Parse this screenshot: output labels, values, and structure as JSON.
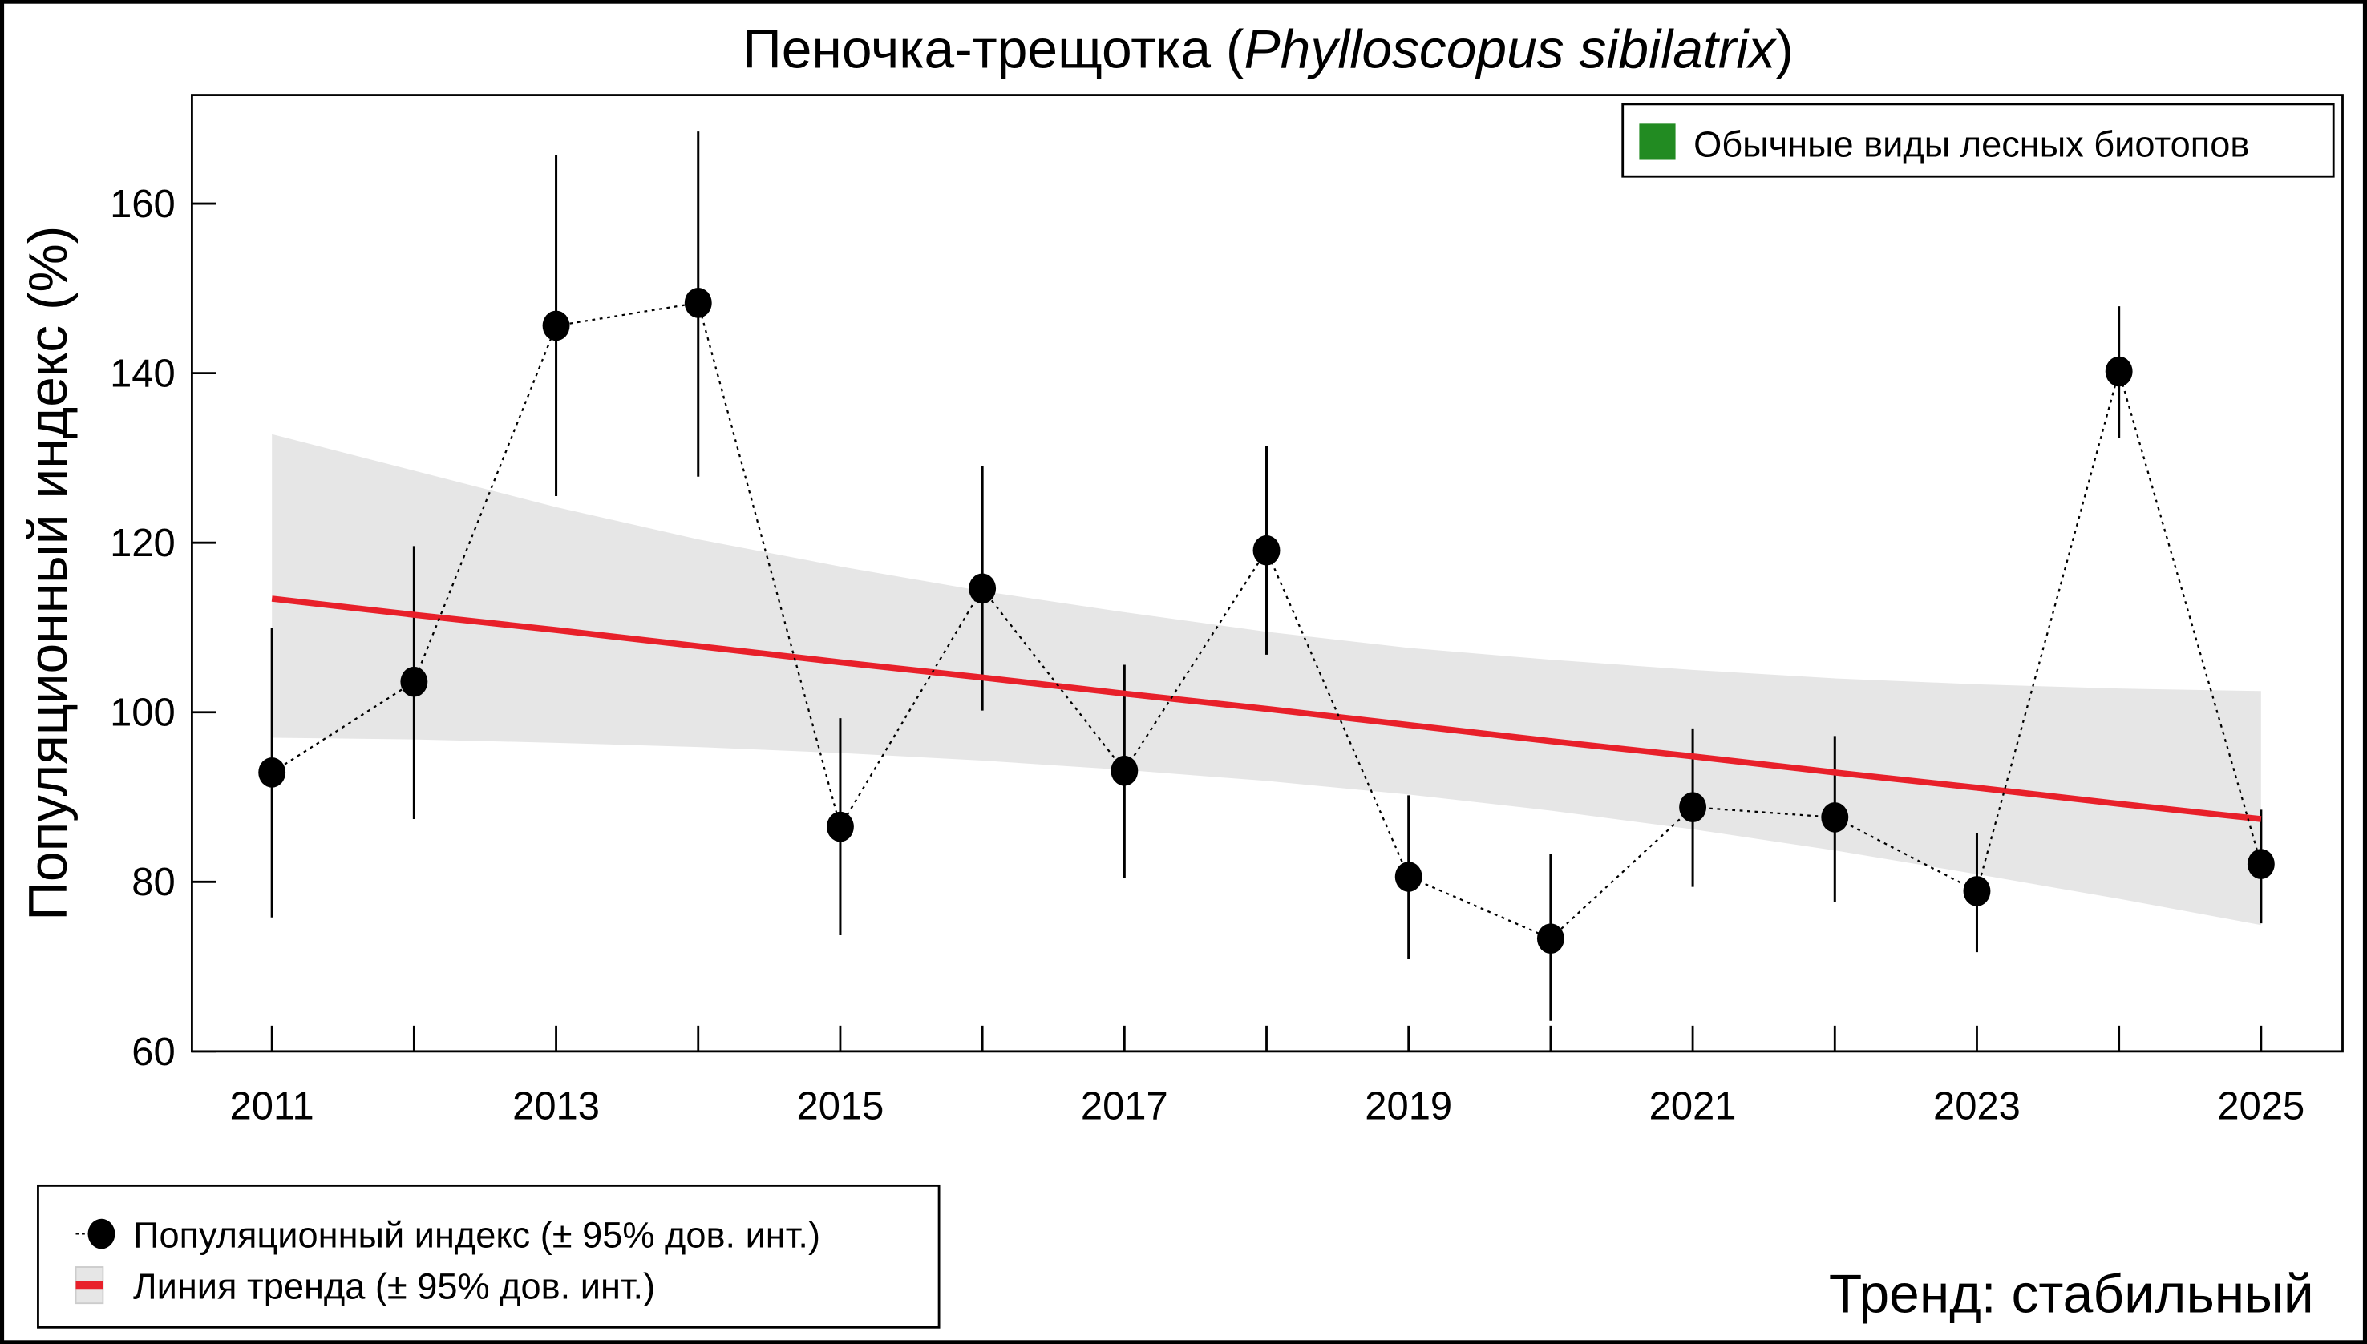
{
  "chart_data": {
    "type": "line",
    "title_main": "Пеночка-трещотка (",
    "title_italic": "Phylloscopus sibilatrix",
    "title_end": ")",
    "xlabel": "",
    "ylabel": "Популяционный индекс (%)",
    "xlim": [
      2011,
      2025
    ],
    "ylim": [
      60,
      170
    ],
    "x_ticks": [
      2011,
      2013,
      2015,
      2017,
      2019,
      2021,
      2023,
      2025
    ],
    "y_ticks": [
      60,
      80,
      100,
      120,
      140,
      160
    ],
    "grid": false,
    "x": [
      2011,
      2012,
      2013,
      2014,
      2015,
      2016,
      2017,
      2018,
      2019,
      2020,
      2021,
      2022,
      2023,
      2024,
      2025
    ],
    "series": [
      {
        "name": "Популяционный индекс (± 95% дов. инт.)",
        "values": [
          92.9,
          103.6,
          145.6,
          148.3,
          86.5,
          114.6,
          93.1,
          119.1,
          80.6,
          73.3,
          88.8,
          87.6,
          78.9,
          140.2,
          82.1
        ],
        "ci_upper": [
          110.0,
          119.6,
          165.7,
          168.5,
          99.3,
          129.0,
          105.6,
          131.4,
          90.2,
          83.3,
          98.1,
          97.2,
          85.8,
          147.9,
          88.5
        ],
        "ci_lower": [
          75.8,
          87.4,
          125.5,
          127.8,
          73.7,
          100.2,
          80.5,
          106.8,
          70.9,
          63.6,
          79.4,
          77.6,
          71.7,
          132.4,
          75.1
        ],
        "color": "#000000"
      },
      {
        "name": "Линия тренда (± 95% дов. инт.)",
        "values": [
          113.4,
          111.5,
          109.7,
          107.8,
          105.9,
          104.1,
          102.2,
          100.4,
          98.5,
          96.6,
          94.8,
          92.9,
          91.1,
          89.2,
          87.4
        ],
        "band_upper": [
          132.8,
          128.5,
          124.2,
          120.4,
          117.2,
          114.3,
          111.8,
          109.5,
          107.6,
          106.2,
          105.0,
          104.0,
          103.3,
          102.8,
          102.5
        ],
        "band_lower": [
          97.0,
          96.8,
          96.4,
          95.9,
          95.2,
          94.3,
          93.2,
          91.9,
          90.3,
          88.4,
          86.2,
          83.7,
          80.9,
          78.0,
          74.9
        ],
        "color": "#e8202a",
        "band_color": "#e6e6e6"
      }
    ],
    "group_legend": {
      "label": "Обычные виды лесных биотопов",
      "color": "#228b22",
      "placement": "top-right"
    },
    "legend_placement": "bottom-left",
    "trend_text": "Тренд: стабильный",
    "trend_text_color": "#1010c8"
  }
}
